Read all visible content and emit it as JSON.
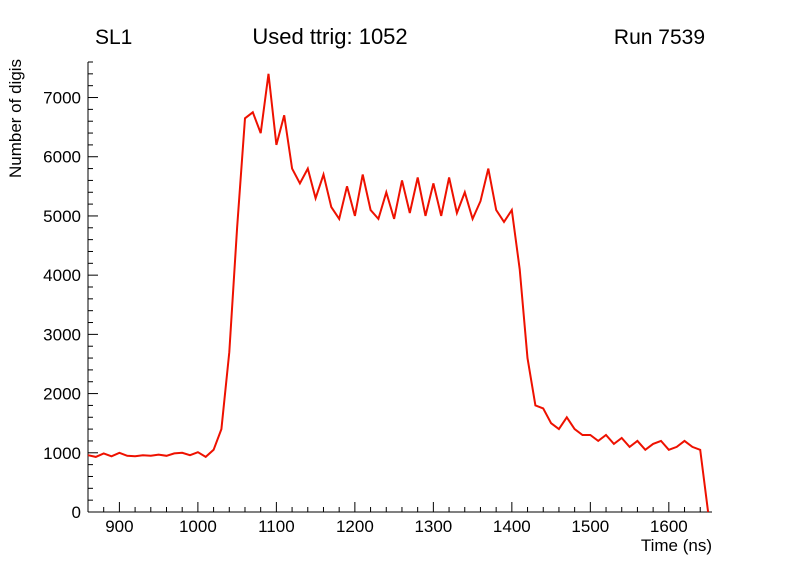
{
  "header": {
    "left": "SL1",
    "center": "Used ttrig: 1052",
    "right": "Run 7539"
  },
  "chart_data": {
    "type": "line",
    "title": "Used ttrig: 1052",
    "xlabel": "Time (ns)",
    "ylabel": "Number of digis",
    "xlim": [
      860,
      1655
    ],
    "ylim": [
      0,
      7600
    ],
    "xticks": [
      900,
      1000,
      1100,
      1200,
      1300,
      1400,
      1500,
      1600
    ],
    "yticks": [
      0,
      1000,
      2000,
      3000,
      4000,
      5000,
      6000,
      7000
    ],
    "x_minor_step": 20,
    "y_minor_step": 200,
    "line_color": "#ee1100",
    "axis_color": "#000000",
    "legend": "none",
    "grid": false,
    "series": [
      {
        "name": "digis",
        "x": [
          860,
          870,
          880,
          890,
          900,
          910,
          920,
          930,
          940,
          950,
          960,
          970,
          980,
          990,
          1000,
          1010,
          1020,
          1030,
          1040,
          1050,
          1060,
          1070,
          1080,
          1090,
          1100,
          1110,
          1120,
          1130,
          1140,
          1150,
          1160,
          1170,
          1180,
          1190,
          1200,
          1210,
          1220,
          1230,
          1240,
          1250,
          1260,
          1270,
          1280,
          1290,
          1300,
          1310,
          1320,
          1330,
          1340,
          1350,
          1360,
          1370,
          1380,
          1390,
          1400,
          1410,
          1420,
          1430,
          1440,
          1450,
          1460,
          1470,
          1480,
          1490,
          1500,
          1510,
          1520,
          1530,
          1540,
          1550,
          1560,
          1570,
          1580,
          1590,
          1600,
          1610,
          1620,
          1630,
          1640,
          1650
        ],
        "y": [
          960,
          930,
          990,
          940,
          1000,
          950,
          940,
          960,
          950,
          970,
          950,
          990,
          1000,
          960,
          1010,
          930,
          1050,
          1400,
          2700,
          4800,
          6650,
          6750,
          6400,
          7400,
          6200,
          6700,
          5800,
          5550,
          5800,
          5300,
          5700,
          5150,
          4950,
          5500,
          5000,
          5700,
          5100,
          4950,
          5400,
          4950,
          5600,
          5050,
          5650,
          5000,
          5550,
          5000,
          5650,
          5050,
          5400,
          4950,
          5250,
          5800,
          5100,
          4900,
          5100,
          4100,
          2600,
          1800,
          1750,
          1500,
          1400,
          1600,
          1400,
          1300,
          1300,
          1200,
          1300,
          1150,
          1250,
          1100,
          1200,
          1050,
          1150,
          1200,
          1050,
          1100,
          1200,
          1100,
          1050,
          0
        ]
      }
    ]
  }
}
